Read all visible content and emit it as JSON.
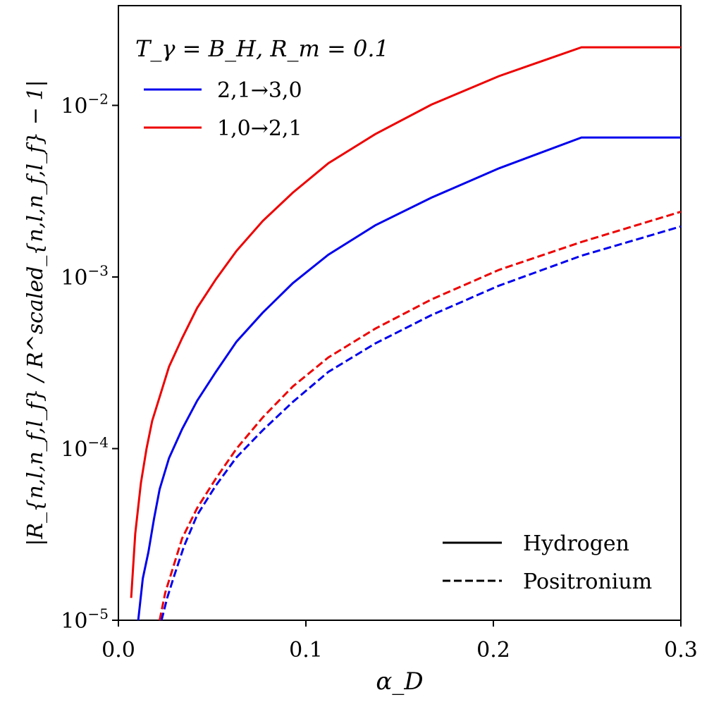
{
  "chart_data": {
    "type": "line",
    "title": "",
    "xlabel": "α_D",
    "ylabel": "|R_{n,l,n_f,l_f} / R^scaled_{n,l,n_f,l_f} − 1|",
    "xlim": [
      0.0,
      0.3
    ],
    "ylim": [
      1e-05,
      0.04
    ],
    "yscale": "log",
    "x_ticks": [
      0.0,
      0.1,
      0.2,
      0.3
    ],
    "x_tick_labels": [
      "0.0",
      "0.1",
      "0.2",
      "0.3"
    ],
    "y_ticks": [
      1e-05,
      0.0001,
      0.001,
      0.01
    ],
    "y_tick_labels": [
      {
        "base": "10",
        "exp": "−5"
      },
      {
        "base": "10",
        "exp": "−4"
      },
      {
        "base": "10",
        "exp": "−3"
      },
      {
        "base": "10",
        "exp": "−2"
      }
    ],
    "annotation": "T_γ = B_H, R_m = 0.1",
    "color_legend": {
      "position": "upper-left",
      "entries": [
        {
          "label": "2,1→3,0",
          "color": "#0000ee"
        },
        {
          "label": "1,0→2,1",
          "color": "#ee0000"
        }
      ]
    },
    "style_legend": {
      "position": "lower-right",
      "entries": [
        {
          "label": "Hydrogen",
          "style": "solid"
        },
        {
          "label": "Positronium",
          "style": "dashed"
        }
      ]
    },
    "series": [
      {
        "name": "1,0→2,1 Hydrogen",
        "color": "#ee0000",
        "style": "solid",
        "x": [
          0.0068,
          0.009,
          0.012,
          0.015,
          0.018,
          0.022,
          0.027,
          0.034,
          0.042,
          0.052,
          0.063,
          0.077,
          0.093,
          0.112,
          0.137,
          0.167,
          0.203,
          0.247,
          0.3
        ],
        "y": [
          1.35e-05,
          3.2e-05,
          6.3e-05,
          0.0001,
          0.000145,
          0.0002,
          0.0003,
          0.00044,
          0.00066,
          0.00097,
          0.00142,
          0.00212,
          0.0031,
          0.0046,
          0.0068,
          0.0101,
          0.0148,
          0.0218,
          0.0218
        ]
      },
      {
        "name": "2,1→3,0 Hydrogen",
        "color": "#0000ee",
        "style": "solid",
        "x": [
          0.0105,
          0.013,
          0.016,
          0.019,
          0.022,
          0.027,
          0.034,
          0.042,
          0.052,
          0.063,
          0.077,
          0.093,
          0.112,
          0.137,
          0.167,
          0.203,
          0.247,
          0.3
        ],
        "y": [
          9.8e-06,
          1.75e-05,
          2.5e-05,
          3.9e-05,
          5.8e-05,
          8.8e-05,
          0.00013,
          0.00019,
          0.00028,
          0.00042,
          0.00062,
          0.00092,
          0.00135,
          0.002,
          0.0029,
          0.0043,
          0.0065,
          0.0065
        ]
      },
      {
        "name": "1,0→2,1 Positronium",
        "color": "#ee0000",
        "style": "dashed",
        "x": [
          0.022,
          0.025,
          0.029,
          0.034,
          0.042,
          0.052,
          0.063,
          0.077,
          0.093,
          0.112,
          0.137,
          0.167,
          0.203,
          0.247,
          0.3
        ],
        "y": [
          1e-05,
          1.45e-05,
          2e-05,
          3e-05,
          4.5e-05,
          6.7e-05,
          0.0001,
          0.000152,
          0.00023,
          0.00034,
          0.0005,
          0.00074,
          0.0011,
          0.0016,
          0.0024
        ]
      },
      {
        "name": "2,1→3,0 Positronium",
        "color": "#0000ee",
        "style": "dashed",
        "x": [
          0.023,
          0.026,
          0.03,
          0.035,
          0.042,
          0.052,
          0.063,
          0.077,
          0.093,
          0.112,
          0.137,
          0.167,
          0.203,
          0.247,
          0.3
        ],
        "y": [
          1e-05,
          1.35e-05,
          1.85e-05,
          2.7e-05,
          4.1e-05,
          6.1e-05,
          8.9e-05,
          0.000128,
          0.000187,
          0.00028,
          0.00041,
          0.0006,
          0.00089,
          0.00133,
          0.00197
        ]
      }
    ]
  }
}
